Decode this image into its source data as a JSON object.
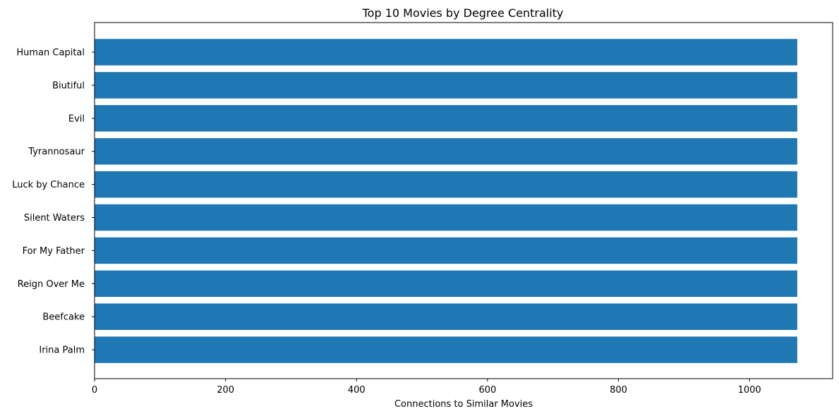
{
  "chart_data": {
    "type": "bar",
    "orientation": "horizontal",
    "title": "Top 10 Movies by Degree Centrality",
    "xlabel": "Connections to Similar Movies",
    "ylabel": "",
    "categories": [
      "Human Capital",
      "Biutiful",
      "Evil",
      "Tyrannosaur",
      "Luck by Chance",
      "Silent Waters",
      "For My Father",
      "Reign Over Me",
      "Beefcake",
      "Irina Palm"
    ],
    "values": [
      1073,
      1073,
      1073,
      1073,
      1073,
      1073,
      1073,
      1073,
      1073,
      1073
    ],
    "xlim": [
      0,
      1127
    ],
    "xticks": [
      0,
      200,
      400,
      600,
      800,
      1000
    ],
    "grid": false,
    "legend": "none",
    "bar_color": "#1f77b4"
  }
}
